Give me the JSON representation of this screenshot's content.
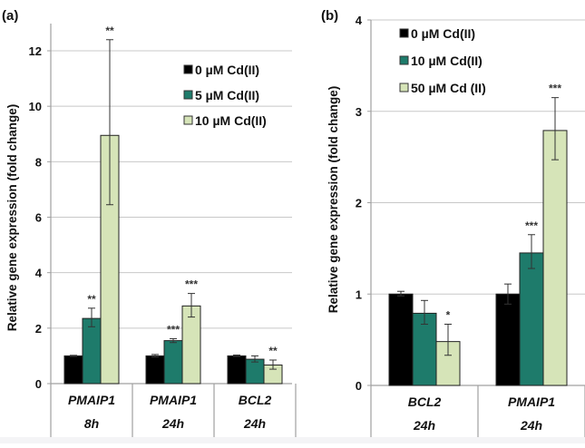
{
  "colors": {
    "series0": "#000000",
    "series1": "#1e7b6b",
    "series2": "#d6e4b8",
    "grid": "#c8c8c8",
    "axis": "#a0a0a0",
    "bar_outline": "#222222",
    "error_bar": "#333333"
  },
  "chart_data": [
    {
      "type": "bar",
      "panel_label": "(a)",
      "title": "",
      "xlabel": "",
      "ylabel": "Relative gene expression (fold change)",
      "ylim": [
        0,
        13
      ],
      "yticks": [
        0,
        2,
        4,
        6,
        8,
        10,
        12
      ],
      "grid": true,
      "legend_position": "top-right",
      "categories": [
        {
          "gene": "PMAIP1",
          "time": "8h"
        },
        {
          "gene": "PMAIP1",
          "time": "24h"
        },
        {
          "gene": "BCL2",
          "time": "24h"
        }
      ],
      "series": [
        {
          "name": "0 µM Cd(II)",
          "values": [
            1.0,
            1.0,
            1.0
          ],
          "err_low": [
            0.98,
            0.96,
            0.98
          ],
          "err_high": [
            1.02,
            1.05,
            1.03
          ],
          "significance": [
            "",
            "",
            ""
          ]
        },
        {
          "name": "5 µM Cd(II)",
          "values": [
            2.35,
            1.55,
            0.88
          ],
          "err_low": [
            2.05,
            1.48,
            0.78
          ],
          "err_high": [
            2.72,
            1.62,
            1.0
          ],
          "significance": [
            "**",
            "***",
            ""
          ]
        },
        {
          "name": "10 µM Cd(II)",
          "values": [
            8.95,
            2.8,
            0.67
          ],
          "err_low": [
            6.45,
            2.4,
            0.52
          ],
          "err_high": [
            12.4,
            3.25,
            0.85
          ],
          "significance": [
            "**",
            "***",
            "**"
          ]
        }
      ]
    },
    {
      "type": "bar",
      "panel_label": "(b)",
      "title": "",
      "xlabel": "",
      "ylabel": "Relative gene expression (fold change)",
      "ylim": [
        0,
        4
      ],
      "yticks": [
        0,
        1,
        2,
        3,
        4
      ],
      "grid": true,
      "legend_position": "top-left",
      "categories": [
        {
          "gene": "BCL2",
          "time": "24h"
        },
        {
          "gene": "PMAIP1",
          "time": "24h"
        }
      ],
      "series": [
        {
          "name": "0 µM Cd(II)",
          "values": [
            1.0,
            1.0
          ],
          "err_low": [
            0.98,
            0.89
          ],
          "err_high": [
            1.03,
            1.11
          ],
          "significance": [
            "",
            ""
          ]
        },
        {
          "name": "10 µM Cd(II)",
          "values": [
            0.79,
            1.45
          ],
          "err_low": [
            0.67,
            1.28
          ],
          "err_high": [
            0.93,
            1.65
          ],
          "significance": [
            "",
            "***"
          ]
        },
        {
          "name": "50 µM Cd (II)",
          "values": [
            0.48,
            2.79
          ],
          "err_low": [
            0.33,
            2.47
          ],
          "err_high": [
            0.67,
            3.15
          ],
          "significance": [
            "*",
            "***"
          ]
        }
      ]
    }
  ]
}
